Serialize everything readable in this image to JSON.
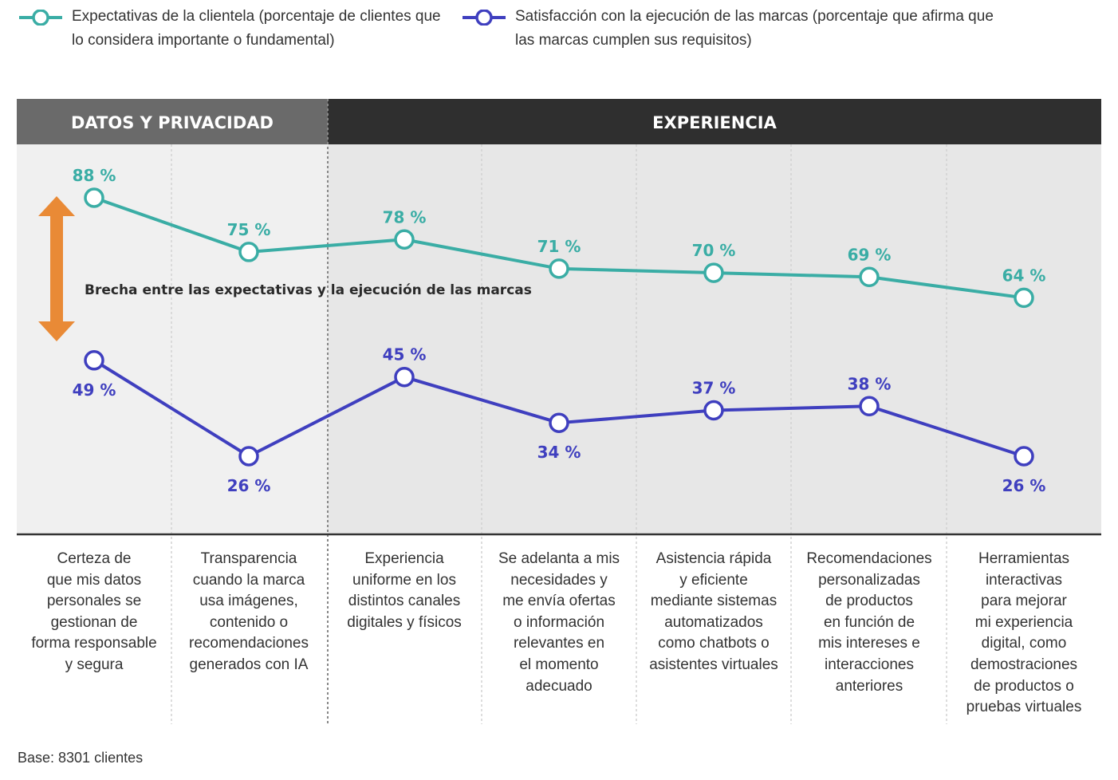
{
  "legend": {
    "expectations": "Expectativas de la clientela (porcentaje de clientes que lo considera importante o fundamental)",
    "satisfaction": "Satisfacción con la ejecución de las marcas (porcentaje que afirma que las marcas cumplen sus requisitos)"
  },
  "sections": [
    {
      "title": "DATOS Y PRIVACIDAD",
      "categories": 2
    },
    {
      "title": "EXPERIENCIA",
      "categories": 5
    }
  ],
  "gap_annotation": "Brecha entre las expectativas y la ejecución de las marcas",
  "base_note": "Base: 8301 clientes",
  "colors": {
    "expectations": "#3aada5",
    "satisfaction": "#3f3fbf",
    "arrow": "#e98a36",
    "header_privacy": "#6a6a6a",
    "header_experience": "#2f2f2f",
    "panel_privacy": "#f0f0f0",
    "panel_experience": "#e7e7e7"
  },
  "chart_data": {
    "type": "line",
    "categories": [
      "Certeza de que mis datos personales se gestionan de forma responsable y segura",
      "Transparencia cuando la marca usa imágenes, contenido o recomendaciones generados con IA",
      "Experiencia uniforme en los distintos canales digitales y físicos",
      "Se adelanta a mis necesidades y me envía ofertas o información relevantes en el momento adecuado",
      "Asistencia rápida y eficiente mediante sistemas automatizados como chatbots o asistentes virtuales",
      "Recomendaciones personalizadas de productos en función de mis intereses e interacciones anteriores",
      "Herramientas interactivas para mejorar mi experiencia digital, como demostraciones de productos o pruebas virtuales"
    ],
    "category_lines": [
      [
        "Certeza de",
        "que mis datos",
        "personales se",
        "gestionan de",
        "forma responsable",
        "y segura"
      ],
      [
        "Transparencia",
        "cuando la marca",
        "usa imágenes,",
        "contenido o",
        "recomendaciones",
        "generados con IA"
      ],
      [
        "Experiencia",
        "uniforme en los",
        "distintos canales",
        "digitales y físicos"
      ],
      [
        "Se adelanta a mis",
        "necesidades y",
        "me envía ofertas",
        "o información",
        "relevantes en",
        "el momento",
        "adecuado"
      ],
      [
        "Asistencia rápida",
        "y eficiente",
        "mediante sistemas",
        "automatizados",
        "como chatbots o",
        "asistentes virtuales"
      ],
      [
        "Recomendaciones",
        "personalizadas",
        "de productos",
        "en función de",
        "mis intereses e",
        "interacciones",
        "anteriores"
      ],
      [
        "Herramientas",
        "interactivas",
        "para mejorar",
        "mi experiencia",
        "digital, como",
        "demostraciones",
        "de productos o",
        "pruebas virtuales"
      ]
    ],
    "series": [
      {
        "name": "Expectativas de la clientela (porcentaje de clientes que lo considera importante o fundamental)",
        "values": [
          88,
          75,
          78,
          71,
          70,
          69,
          64
        ],
        "labels": [
          "88 %",
          "75 %",
          "78 %",
          "71 %",
          "70 %",
          "69 %",
          "64 %"
        ]
      },
      {
        "name": "Satisfacción con la ejecución de las marcas (porcentaje que afirma que las marcas cumplen sus requisitos)",
        "values": [
          49,
          26,
          45,
          34,
          37,
          38,
          26
        ],
        "labels": [
          "49 %",
          "26 %",
          "45 %",
          "34 %",
          "37 %",
          "38 %",
          "26 %"
        ]
      }
    ],
    "label_position": [
      [
        "above",
        "above",
        "above",
        "above",
        "above",
        "above",
        "above"
      ],
      [
        "below",
        "below",
        "above",
        "below",
        "above",
        "above",
        "below"
      ]
    ],
    "ylim": [
      0,
      100
    ],
    "grid": false
  }
}
